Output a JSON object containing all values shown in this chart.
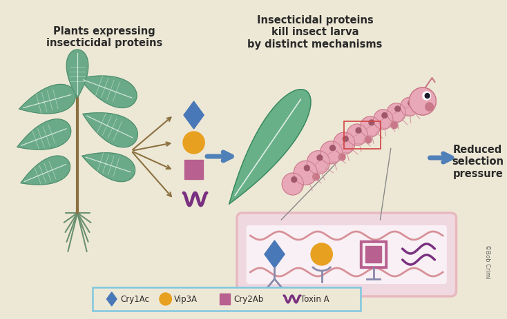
{
  "background_color": "#ede8d5",
  "title_left": "Plants expressing\ninsecticidal proteins",
  "title_center": "Insecticidal proteins\nkill insect larva\nby distinct mechanisms",
  "title_right": "Reduced\nselection\npressure",
  "legend_box_color": "#7ec8e0",
  "legend_items": [
    {
      "label": "Cry1Ac",
      "color": "#4878b8",
      "shape": "diamond"
    },
    {
      "label": "Vip3A",
      "color": "#e8a020",
      "shape": "circle"
    },
    {
      "label": "Cry2Ab",
      "color": "#b86090",
      "shape": "square"
    },
    {
      "label": "Toxin A",
      "color": "#7a3080",
      "shape": "wave"
    }
  ],
  "diamond_color": "#4878b8",
  "circle_color": "#e8a020",
  "square_color": "#b86090",
  "wave_color": "#7a3080",
  "arrow_color": "#8b7040",
  "blue_arrow_color": "#5080b8",
  "plant_stem_color": "#8b7040",
  "plant_root_color": "#6a9070",
  "plant_leaf_color": "#6aaa88",
  "plant_leaf_dark": "#4a8868",
  "caterpillar_body": "#e8a8b8",
  "caterpillar_dark": "#c87888",
  "caterpillar_spot": "#a05868",
  "gut_outer": "#e8b8c0",
  "gut_inner": "#f8f0f4",
  "gut_wave": "#d89098",
  "gut_receptor": "#8888aa",
  "line_color": "#888888",
  "copyright_text": "©Bob Crimi",
  "text_color": "#2a2a2a"
}
